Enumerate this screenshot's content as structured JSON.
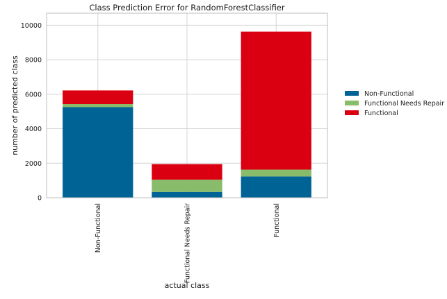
{
  "chart_data": {
    "type": "bar",
    "stacked": true,
    "title": "Class Prediction Error for RandomForestClassifier",
    "xlabel": "actual class",
    "ylabel": "number of predicted class",
    "categories": [
      "Non-Functional",
      "Functional Needs Repair",
      "Functional"
    ],
    "ylim": [
      0,
      10700
    ],
    "yticks": [
      0,
      2000,
      4000,
      6000,
      8000,
      10000
    ],
    "grid": true,
    "legend_position": "right",
    "series": [
      {
        "name": "Non-Functional",
        "color": "#006396",
        "values": [
          5250,
          330,
          1230
        ]
      },
      {
        "name": "Functional Needs Repair",
        "color": "#88bb6a",
        "values": [
          180,
          720,
          400
        ]
      },
      {
        "name": "Functional",
        "color": "#db0011",
        "values": [
          790,
          900,
          8000
        ]
      }
    ]
  }
}
